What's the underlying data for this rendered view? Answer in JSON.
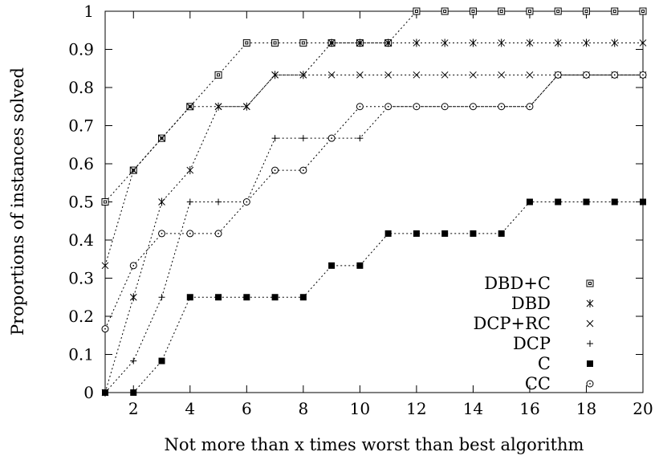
{
  "chart_data": {
    "type": "line",
    "title": "",
    "xlabel": "Not more than x times worst than best algorithm",
    "ylabel": "Proportions of instances solved",
    "xlim": [
      1,
      20
    ],
    "ylim": [
      0,
      1
    ],
    "x_ticks": [
      2,
      4,
      6,
      8,
      10,
      12,
      14,
      16,
      18,
      20
    ],
    "y_ticks": [
      0,
      0.1,
      0.2,
      0.3,
      0.4,
      0.5,
      0.6,
      0.7,
      0.8,
      0.9,
      1
    ],
    "grid": false,
    "legend_position": "bottom-right",
    "x": [
      1,
      2,
      3,
      4,
      5,
      6,
      7,
      8,
      9,
      10,
      11,
      12,
      13,
      14,
      15,
      16,
      17,
      18,
      19,
      20
    ],
    "series": [
      {
        "name": "DBD+C",
        "marker": "boxed-square",
        "values": [
          0.5,
          0.583,
          0.667,
          0.75,
          0.833,
          0.917,
          0.917,
          0.917,
          0.917,
          0.917,
          0.917,
          1,
          1,
          1,
          1,
          1,
          1,
          1,
          1,
          1
        ]
      },
      {
        "name": "DBD",
        "marker": "asterisk",
        "values": [
          0,
          0.25,
          0.5,
          0.583,
          0.75,
          0.75,
          0.833,
          0.833,
          0.917,
          0.917,
          0.917,
          0.917,
          0.917,
          0.917,
          0.917,
          0.917,
          0.917,
          0.917,
          0.917,
          0.917
        ]
      },
      {
        "name": "DCP+RC",
        "marker": "cross",
        "values": [
          0.333,
          0.583,
          0.667,
          0.75,
          0.75,
          0.75,
          0.833,
          0.833,
          0.833,
          0.833,
          0.833,
          0.833,
          0.833,
          0.833,
          0.833,
          0.833,
          0.833,
          0.833,
          0.833,
          0.833
        ]
      },
      {
        "name": "DCP",
        "marker": "plus",
        "values": [
          0,
          0.083,
          0.25,
          0.5,
          0.5,
          0.5,
          0.667,
          0.667,
          0.667,
          0.667,
          0.75,
          0.75,
          0.75,
          0.75,
          0.75,
          0.75,
          0.833,
          0.833,
          0.833,
          0.833
        ]
      },
      {
        "name": "C",
        "marker": "filled-square",
        "values": [
          0,
          0,
          0.083,
          0.25,
          0.25,
          0.25,
          0.25,
          0.25,
          0.333,
          0.333,
          0.417,
          0.417,
          0.417,
          0.417,
          0.417,
          0.5,
          0.5,
          0.5,
          0.5,
          0.5
        ]
      },
      {
        "name": "CC",
        "marker": "circle-dot",
        "values": [
          0.167,
          0.333,
          0.417,
          0.417,
          0.417,
          0.5,
          0.583,
          0.583,
          0.667,
          0.75,
          0.75,
          0.75,
          0.75,
          0.75,
          0.75,
          0.75,
          0.833,
          0.833,
          0.833,
          0.833
        ]
      }
    ]
  }
}
